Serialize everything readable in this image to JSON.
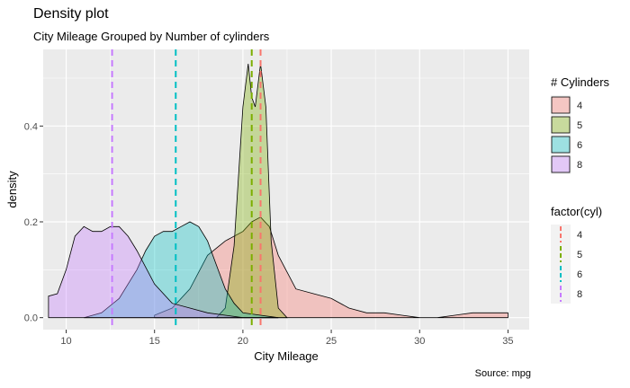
{
  "title": "Density plot",
  "subtitle": "City Mileage Grouped by Number of cylinders",
  "caption": "Source: mpg",
  "colors": {
    "panel": "#ebebeb",
    "grid_major": "#ffffff",
    "4": "#f8766d",
    "5": "#7cae00",
    "6": "#00bfc4",
    "8": "#c77cff"
  },
  "chart_data": {
    "type": "area",
    "xlabel": "City Mileage",
    "ylabel": "density",
    "xlim": [
      8.7,
      36.2
    ],
    "ylim": [
      -0.025,
      0.56
    ],
    "xticks": [
      10,
      15,
      20,
      25,
      30,
      35
    ],
    "yticks": [
      0.0,
      0.2,
      0.4
    ],
    "ytick_labels": [
      "0.0",
      "0.2",
      "0.4"
    ],
    "fill_opacity": 0.35,
    "legends": [
      {
        "title": "# Cylinders",
        "entries": [
          "4",
          "5",
          "6",
          "8"
        ]
      },
      {
        "title": "factor(cyl)",
        "entries": [
          "4",
          "5",
          "6",
          "8"
        ]
      }
    ],
    "series": [
      {
        "name": "4",
        "color": "#f8766d",
        "mean": 21.0,
        "x": [
          15,
          16,
          17,
          18,
          19,
          20,
          20.5,
          21,
          21.5,
          22,
          23,
          24,
          25,
          26,
          27,
          28,
          29,
          30,
          31,
          32,
          33,
          34,
          35
        ],
        "y": [
          0.005,
          0.02,
          0.06,
          0.13,
          0.16,
          0.18,
          0.2,
          0.21,
          0.19,
          0.13,
          0.06,
          0.05,
          0.04,
          0.02,
          0.01,
          0.01,
          0.005,
          0.0,
          0.0,
          0.005,
          0.01,
          0.01,
          0.01
        ]
      },
      {
        "name": "5",
        "color": "#7cae00",
        "mean": 20.5,
        "x": [
          18.5,
          19,
          19.5,
          20,
          20.3,
          20.5,
          20.7,
          21,
          21.3,
          21.6,
          22,
          22.5
        ],
        "y": [
          0.0,
          0.02,
          0.15,
          0.44,
          0.53,
          0.46,
          0.44,
          0.53,
          0.44,
          0.16,
          0.02,
          0.0
        ]
      },
      {
        "name": "6",
        "color": "#00bfc4",
        "mean": 16.2,
        "x": [
          11,
          12,
          13,
          14,
          14.5,
          15,
          15.5,
          16,
          16.5,
          17,
          17.5,
          18,
          18.5,
          19,
          19.5,
          20,
          21,
          22
        ],
        "y": [
          0.0,
          0.01,
          0.04,
          0.1,
          0.14,
          0.17,
          0.18,
          0.18,
          0.19,
          0.2,
          0.19,
          0.16,
          0.11,
          0.06,
          0.03,
          0.01,
          0.005,
          0.0
        ]
      },
      {
        "name": "8",
        "color": "#c77cff",
        "mean": 12.6,
        "x": [
          9,
          9.5,
          10,
          10.5,
          11,
          11.5,
          12,
          12.5,
          13,
          13.5,
          14,
          15,
          16,
          17,
          18,
          19,
          20,
          21,
          22
        ],
        "y": [
          0.045,
          0.05,
          0.1,
          0.17,
          0.19,
          0.18,
          0.18,
          0.19,
          0.19,
          0.17,
          0.14,
          0.07,
          0.03,
          0.02,
          0.01,
          0.005,
          0.0,
          0.0,
          0.0
        ]
      }
    ]
  }
}
